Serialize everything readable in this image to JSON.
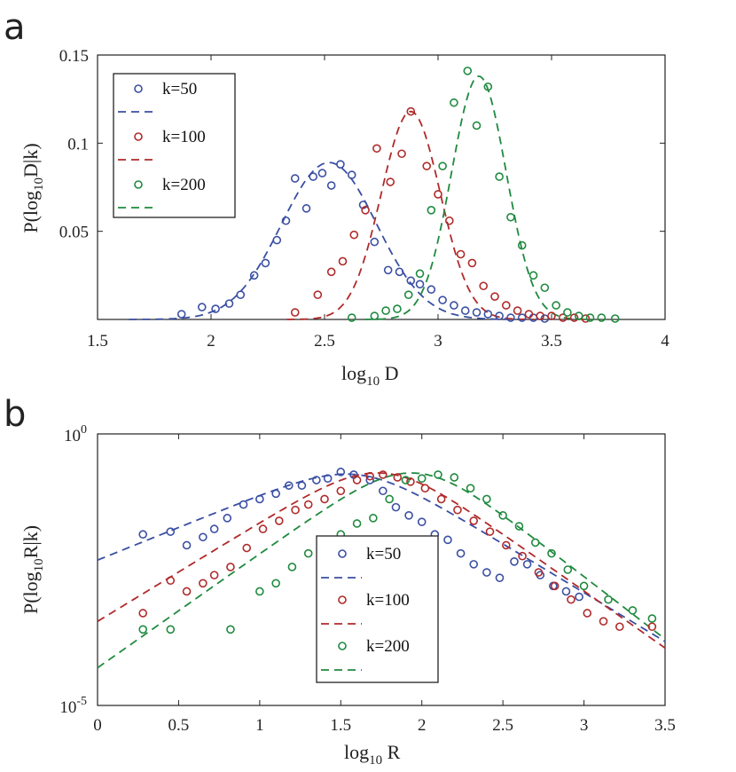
{
  "panels": {
    "a": {
      "letter": "a"
    },
    "b": {
      "letter": "b"
    }
  },
  "chart_data": [
    {
      "id": "a",
      "type": "scatter",
      "xlabel": "log10 D",
      "ylabel": "P(log10D|k)",
      "xlim": [
        1.5,
        4
      ],
      "ylim": [
        0,
        0.15
      ],
      "xticks": [
        1.5,
        2,
        2.5,
        3,
        3.5,
        4
      ],
      "xtick_labels": [
        "1.5",
        "2",
        "2.5",
        "3",
        "3.5",
        "4"
      ],
      "yticks": [
        0.05,
        0.1,
        0.15
      ],
      "ytick_labels": [
        "0.05",
        "0.1",
        "0.15"
      ],
      "legend_position": "top-left",
      "series": [
        {
          "name": "k=50",
          "color": "#3a4fa3",
          "points": [
            [
              1.87,
              0.003
            ],
            [
              1.96,
              0.007
            ],
            [
              2.02,
              0.006
            ],
            [
              2.08,
              0.009
            ],
            [
              2.13,
              0.014
            ],
            [
              2.19,
              0.025
            ],
            [
              2.24,
              0.032
            ],
            [
              2.29,
              0.045
            ],
            [
              2.33,
              0.056
            ],
            [
              2.37,
              0.08
            ],
            [
              2.42,
              0.063
            ],
            [
              2.45,
              0.081
            ],
            [
              2.49,
              0.083
            ],
            [
              2.53,
              0.076
            ],
            [
              2.57,
              0.088
            ],
            [
              2.62,
              0.082
            ],
            [
              2.67,
              0.065
            ],
            [
              2.72,
              0.044
            ],
            [
              2.78,
              0.028
            ],
            [
              2.83,
              0.027
            ],
            [
              2.88,
              0.022
            ],
            [
              2.92,
              0.02
            ],
            [
              2.97,
              0.017
            ],
            [
              3.02,
              0.011
            ],
            [
              3.07,
              0.008
            ],
            [
              3.12,
              0.005
            ],
            [
              3.17,
              0.004
            ],
            [
              3.22,
              0.003
            ],
            [
              3.27,
              0.002
            ],
            [
              3.32,
              0.001
            ],
            [
              3.37,
              0.001
            ],
            [
              3.42,
              0.001
            ],
            [
              3.47,
              0.0005
            ]
          ],
          "fit": {
            "mu": 2.52,
            "sigma": 0.21,
            "amp": 0.089
          }
        },
        {
          "name": "k=100",
          "color": "#b02a2a",
          "points": [
            [
              2.37,
              0.004
            ],
            [
              2.47,
              0.014
            ],
            [
              2.53,
              0.027
            ],
            [
              2.58,
              0.033
            ],
            [
              2.63,
              0.048
            ],
            [
              2.68,
              0.062
            ],
            [
              2.73,
              0.097
            ],
            [
              2.79,
              0.078
            ],
            [
              2.84,
              0.094
            ],
            [
              2.88,
              0.118
            ],
            [
              2.95,
              0.087
            ],
            [
              3.0,
              0.071
            ],
            [
              3.05,
              0.056
            ],
            [
              3.1,
              0.037
            ],
            [
              3.15,
              0.032
            ],
            [
              3.2,
              0.019
            ],
            [
              3.25,
              0.013
            ],
            [
              3.3,
              0.008
            ],
            [
              3.35,
              0.005
            ],
            [
              3.4,
              0.003
            ],
            [
              3.45,
              0.002
            ],
            [
              3.5,
              0.002
            ],
            [
              3.55,
              0.001
            ],
            [
              3.6,
              0.001
            ],
            [
              3.65,
              0.0005
            ]
          ],
          "fit": {
            "mu": 2.88,
            "sigma": 0.13,
            "amp": 0.118
          }
        },
        {
          "name": "k=200",
          "color": "#1f8a3f",
          "points": [
            [
              2.62,
              0.001
            ],
            [
              2.72,
              0.002
            ],
            [
              2.77,
              0.005
            ],
            [
              2.82,
              0.006
            ],
            [
              2.87,
              0.014
            ],
            [
              2.92,
              0.026
            ],
            [
              2.97,
              0.062
            ],
            [
              3.02,
              0.087
            ],
            [
              3.07,
              0.123
            ],
            [
              3.13,
              0.141
            ],
            [
              3.17,
              0.11
            ],
            [
              3.22,
              0.132
            ],
            [
              3.27,
              0.081
            ],
            [
              3.32,
              0.058
            ],
            [
              3.37,
              0.042
            ],
            [
              3.42,
              0.025
            ],
            [
              3.47,
              0.018
            ],
            [
              3.52,
              0.008
            ],
            [
              3.57,
              0.004
            ],
            [
              3.62,
              0.002
            ],
            [
              3.67,
              0.001
            ],
            [
              3.72,
              0.001
            ],
            [
              3.78,
              0.0005
            ]
          ],
          "fit": {
            "mu": 3.18,
            "sigma": 0.12,
            "amp": 0.138
          }
        }
      ]
    },
    {
      "id": "b",
      "type": "scatter",
      "xlabel": "log10 R",
      "ylabel": "P(log10R|k)",
      "xlim": [
        0,
        3.5
      ],
      "ylim_exponent": [
        -5,
        0
      ],
      "xticks": [
        0,
        0.5,
        1,
        1.5,
        2,
        2.5,
        3,
        3.5
      ],
      "xtick_labels": [
        "0",
        "0.5",
        "1",
        "1.5",
        "2",
        "2.5",
        "3",
        "3.5"
      ],
      "ytick_exponents": [
        "0",
        "-5"
      ],
      "ytick_base": "10",
      "legend_position": "bottom-center",
      "series": [
        {
          "name": "k=50",
          "color": "#3a4fa3",
          "points": [
            [
              0.28,
              -1.85
            ],
            [
              0.45,
              -1.8
            ],
            [
              0.55,
              -2.05
            ],
            [
              0.65,
              -1.9
            ],
            [
              0.72,
              -1.75
            ],
            [
              0.8,
              -1.55
            ],
            [
              0.9,
              -1.3
            ],
            [
              1.0,
              -1.2
            ],
            [
              1.1,
              -1.1
            ],
            [
              1.18,
              -0.95
            ],
            [
              1.26,
              -0.95
            ],
            [
              1.35,
              -0.85
            ],
            [
              1.42,
              -0.82
            ],
            [
              1.5,
              -0.7
            ],
            [
              1.58,
              -0.75
            ],
            [
              1.68,
              -0.85
            ],
            [
              1.76,
              -1.05
            ],
            [
              1.84,
              -1.35
            ],
            [
              1.92,
              -1.5
            ],
            [
              2.0,
              -1.62
            ],
            [
              2.08,
              -1.85
            ],
            [
              2.16,
              -1.95
            ],
            [
              2.24,
              -2.2
            ],
            [
              2.32,
              -2.4
            ],
            [
              2.4,
              -2.55
            ],
            [
              2.48,
              -2.65
            ],
            [
              2.57,
              -2.35
            ],
            [
              2.65,
              -2.4
            ],
            [
              2.73,
              -2.6
            ],
            [
              2.81,
              -2.8
            ],
            [
              2.89,
              -2.9
            ],
            [
              2.97,
              -3.0
            ]
          ],
          "fit": {
            "log_peak": -0.75,
            "peak_x": 1.6,
            "slope_left": 1.2,
            "slope_right": 1.8
          }
        },
        {
          "name": "k=100",
          "color": "#b02a2a",
          "points": [
            [
              0.28,
              -3.3
            ],
            [
              0.45,
              -2.7
            ],
            [
              0.55,
              -2.9
            ],
            [
              0.65,
              -2.75
            ],
            [
              0.72,
              -2.6
            ],
            [
              0.82,
              -2.45
            ],
            [
              0.92,
              -2.1
            ],
            [
              1.02,
              -1.75
            ],
            [
              1.12,
              -1.6
            ],
            [
              1.22,
              -1.4
            ],
            [
              1.3,
              -1.3
            ],
            [
              1.4,
              -1.2
            ],
            [
              1.5,
              -1.05
            ],
            [
              1.6,
              -0.85
            ],
            [
              1.68,
              -0.78
            ],
            [
              1.76,
              -0.75
            ],
            [
              1.85,
              -0.8
            ],
            [
              1.93,
              -0.88
            ],
            [
              2.02,
              -1.0
            ],
            [
              2.12,
              -1.2
            ],
            [
              2.22,
              -1.4
            ],
            [
              2.32,
              -1.6
            ],
            [
              2.42,
              -1.8
            ],
            [
              2.52,
              -2.05
            ],
            [
              2.62,
              -2.25
            ],
            [
              2.72,
              -2.55
            ],
            [
              2.82,
              -2.8
            ],
            [
              2.92,
              -3.05
            ],
            [
              3.02,
              -3.3
            ],
            [
              3.12,
              -3.45
            ],
            [
              3.22,
              -3.55
            ],
            [
              3.42,
              -3.55
            ]
          ],
          "fit": {
            "log_peak": -0.72,
            "peak_x": 1.75,
            "slope_left": 1.82,
            "slope_right": 2.1
          }
        },
        {
          "name": "k=200",
          "color": "#1f8a3f",
          "points": [
            [
              0.28,
              -3.6
            ],
            [
              0.45,
              -3.6
            ],
            [
              0.82,
              -3.6
            ],
            [
              1.0,
              -2.9
            ],
            [
              1.1,
              -2.75
            ],
            [
              1.2,
              -2.45
            ],
            [
              1.3,
              -2.2
            ],
            [
              1.4,
              -2.05
            ],
            [
              1.5,
              -1.85
            ],
            [
              1.6,
              -1.65
            ],
            [
              1.7,
              -1.55
            ],
            [
              1.8,
              -1.2
            ],
            [
              1.9,
              -0.85
            ],
            [
              2.0,
              -0.82
            ],
            [
              2.1,
              -0.75
            ],
            [
              2.2,
              -0.8
            ],
            [
              2.3,
              -1.0
            ],
            [
              2.4,
              -1.2
            ],
            [
              2.5,
              -1.5
            ],
            [
              2.6,
              -1.7
            ],
            [
              2.7,
              -2.0
            ],
            [
              2.8,
              -2.2
            ],
            [
              2.9,
              -2.5
            ],
            [
              3.0,
              -2.8
            ],
            [
              3.15,
              -3.05
            ],
            [
              3.3,
              -3.25
            ],
            [
              3.42,
              -3.4
            ]
          ],
          "fit": {
            "log_peak": -0.72,
            "peak_x": 1.95,
            "slope_left": 2.1,
            "slope_right": 2.3
          }
        }
      ]
    }
  ]
}
